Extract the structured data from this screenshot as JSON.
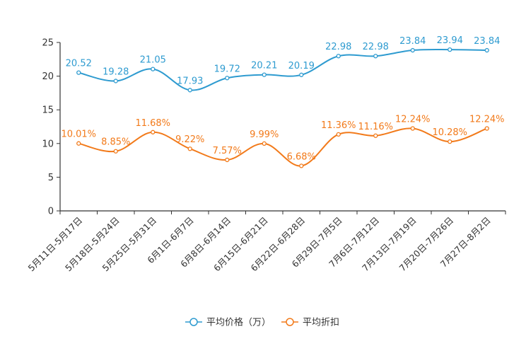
{
  "chart_data": {
    "type": "line",
    "categories": [
      "5月11日-5月17日",
      "5月18日-5月24日",
      "5月25日-5月31日",
      "6月1日-6月7日",
      "6月8日-6月14日",
      "6月15日-6月21日",
      "6月22日-6月28日",
      "6月29日-7月5日",
      "7月6日-7月12日",
      "7月13日-7月19日",
      "7月20日-7月26日",
      "7月27日-8月2日"
    ],
    "series": [
      {
        "name": "平均价格（万）",
        "color": "#2E9BD0",
        "values": [
          20.52,
          19.28,
          21.05,
          17.93,
          19.72,
          20.21,
          20.19,
          22.98,
          22.98,
          23.84,
          23.94,
          23.84
        ],
        "labels": [
          "20.52",
          "19.28",
          "21.05",
          "17.93",
          "19.72",
          "20.21",
          "20.19",
          "22.98",
          "22.98",
          "23.84",
          "23.94",
          "23.84"
        ]
      },
      {
        "name": "平均折扣",
        "color": "#F27A1A",
        "values": [
          10.01,
          8.85,
          11.68,
          9.22,
          7.57,
          9.99,
          6.68,
          11.36,
          11.16,
          12.24,
          10.28,
          12.24
        ],
        "labels": [
          "10.01%",
          "8.85%",
          "11.68%",
          "9.22%",
          "7.57%",
          "9.99%",
          "6.68%",
          "11.36%",
          "11.16%",
          "12.24%",
          "10.28%",
          "12.24%"
        ]
      }
    ],
    "ylim": [
      0,
      25
    ],
    "yticks": [
      "0",
      "5",
      "10",
      "15",
      "20",
      "25"
    ],
    "title": "",
    "xlabel": "",
    "ylabel": "",
    "legend_position": "bottom-center"
  }
}
